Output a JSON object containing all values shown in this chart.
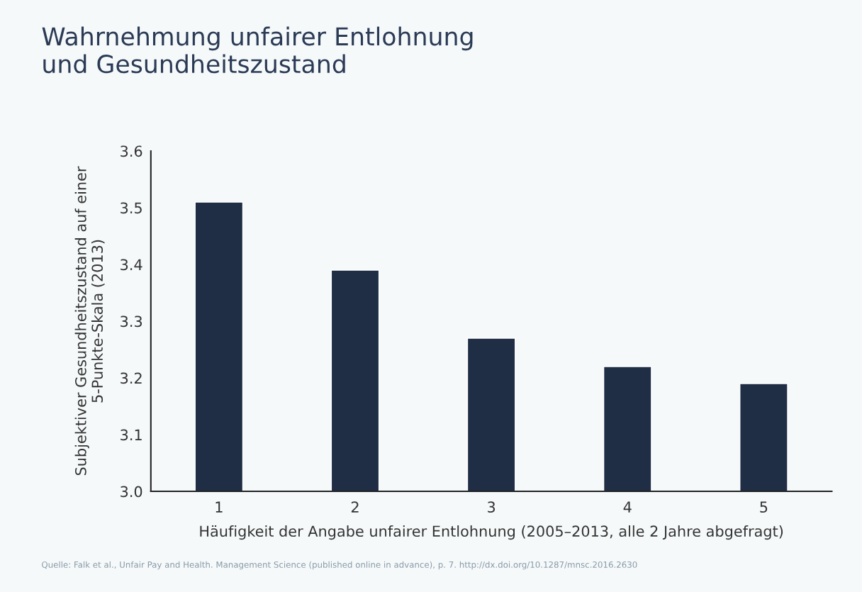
{
  "chart_data": {
    "type": "bar",
    "title": "Wahrnehmung unfairer Entlohnung\nund Gesundheitszustand",
    "xlabel": "Häufigkeit der Angabe unfairer Entlohnung (2005–2013, alle 2 Jahre abgefragt)",
    "ylabel": "Subjektiver Gesundheitszustand auf einer\n5-Punkte-Skala (2013)",
    "categories": [
      "1",
      "2",
      "3",
      "4",
      "5"
    ],
    "values": [
      3.51,
      3.39,
      3.27,
      3.22,
      3.19
    ],
    "color": "#1f2d45",
    "ylim": [
      3.0,
      3.6
    ],
    "yticks": [
      {
        "value": 3.0,
        "label": "3.0"
      },
      3.1,
      3.2,
      3.3,
      3.4,
      3.5,
      3.6
    ],
    "grid": false,
    "legend": false,
    "annotations": [
      "Quelle: Falk et al., Unfair Pay and Health. Management Science (published online in advance), p. 7. http://dx.doi.org/10.1287/mnsc.2016.2630"
    ]
  }
}
